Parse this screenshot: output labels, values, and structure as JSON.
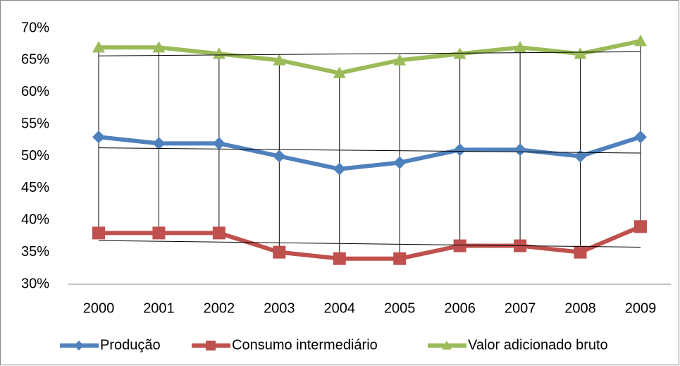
{
  "chart_data": {
    "type": "line",
    "categories": [
      "2000",
      "2001",
      "2002",
      "2003",
      "2004",
      "2005",
      "2006",
      "2007",
      "2008",
      "2009"
    ],
    "series": [
      {
        "name": "Produção",
        "color": "#4f81bd",
        "marker": "diamond",
        "values": [
          53,
          52,
          52,
          50,
          48,
          49,
          51,
          51,
          50,
          53
        ]
      },
      {
        "name": "Consumo intermediário",
        "color": "#c0504d",
        "marker": "square",
        "values": [
          38,
          38,
          38,
          35,
          34,
          34,
          36,
          36,
          35,
          39
        ]
      },
      {
        "name": "Valor adicionado bruto",
        "color": "#9bbb59",
        "marker": "triangle",
        "values": [
          67,
          67,
          66,
          65,
          63,
          65,
          66,
          67,
          66,
          68
        ]
      }
    ],
    "ylim": [
      30,
      70
    ],
    "yticks": [
      {
        "value": 30,
        "label": "30%"
      },
      {
        "value": 35,
        "label": "35%"
      },
      {
        "value": 40,
        "label": "40%"
      },
      {
        "value": 45,
        "label": "45%"
      },
      {
        "value": 50,
        "label": "50%"
      },
      {
        "value": 55,
        "label": "55%"
      },
      {
        "value": 60,
        "label": "60%"
      },
      {
        "value": 65,
        "label": "65%"
      },
      {
        "value": 70,
        "label": "70%"
      }
    ],
    "grid": false,
    "drop_lines": true,
    "trendline": true,
    "legend": "bottom"
  }
}
